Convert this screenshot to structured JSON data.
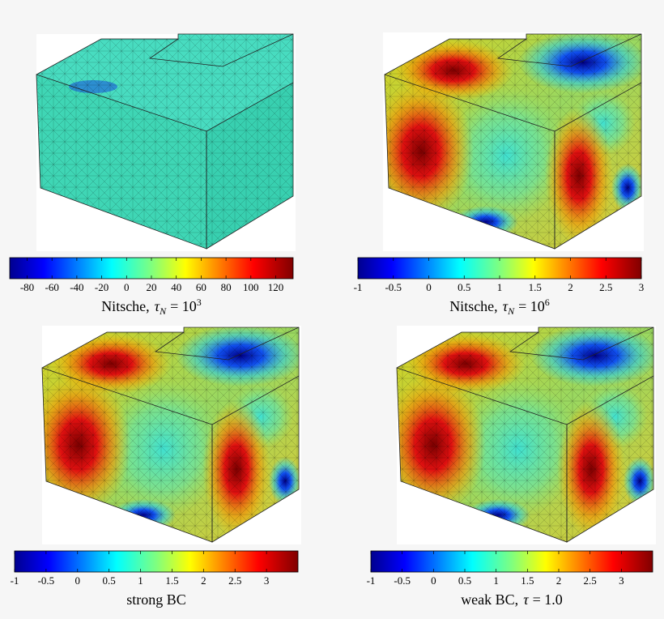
{
  "panels": [
    {
      "colorbar": {
        "lim": [
          -94,
          134
        ],
        "ticks": [
          -80,
          -60,
          -40,
          -20,
          0,
          20,
          40,
          60,
          80,
          100,
          120
        ]
      },
      "caption": {
        "prefix": "Nitsche,",
        "symbol": "τ",
        "subscript": "N",
        "relation": "= 10",
        "superscript": "3"
      }
    },
    {
      "colorbar": {
        "lim": [
          -1,
          3
        ],
        "ticks": [
          -1,
          -0.5,
          0,
          0.5,
          1,
          1.5,
          2,
          2.5,
          3
        ]
      },
      "caption": {
        "prefix": "Nitsche,",
        "symbol": "τ",
        "subscript": "N",
        "relation": "= 10",
        "superscript": "6"
      }
    },
    {
      "colorbar": {
        "lim": [
          -1,
          3.5
        ],
        "ticks": [
          -1,
          -0.5,
          0,
          0.5,
          1,
          1.5,
          2,
          2.5,
          3
        ]
      },
      "caption": {
        "prefix": "strong BC"
      }
    },
    {
      "colorbar": {
        "lim": [
          -1,
          3.5
        ],
        "ticks": [
          -1,
          -0.5,
          0,
          0.5,
          1,
          1.5,
          2,
          2.5,
          3
        ]
      },
      "caption": {
        "prefix": "weak BC,",
        "symbol": "τ",
        "relation": "= 1.0"
      }
    }
  ]
}
